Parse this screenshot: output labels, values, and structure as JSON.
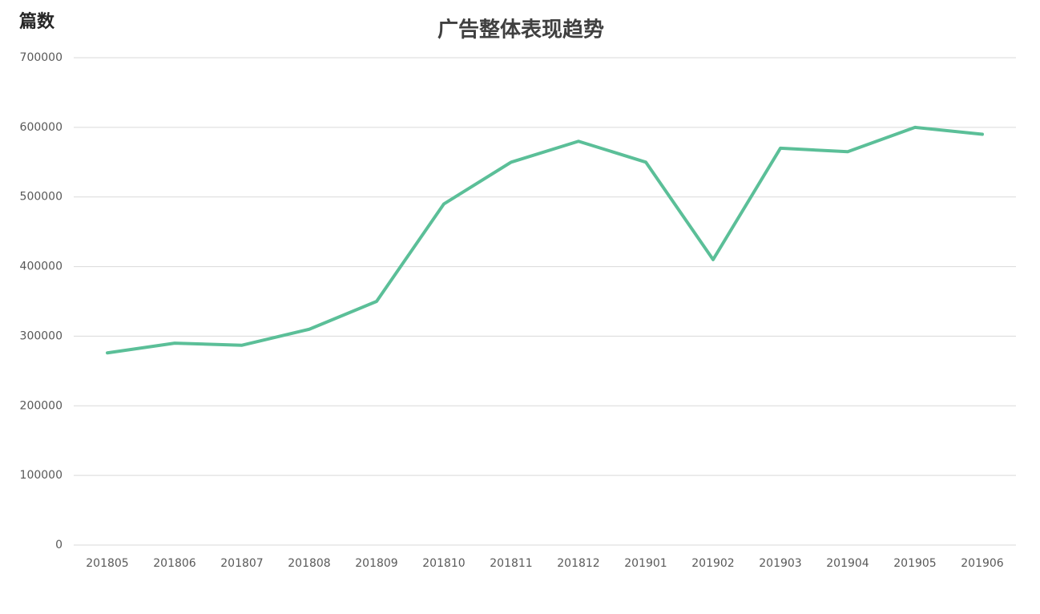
{
  "chart_data": {
    "type": "line",
    "title": "广告整体表现趋势",
    "y_label": "篇数",
    "categories": [
      "201805",
      "201806",
      "201807",
      "201808",
      "201809",
      "201810",
      "201811",
      "201812",
      "201901",
      "201902",
      "201903",
      "201904",
      "201905",
      "201906"
    ],
    "series": [
      {
        "name": "篇数",
        "color": "#5bbf98",
        "values": [
          276000,
          290000,
          287000,
          310000,
          350000,
          490000,
          550000,
          580000,
          550000,
          410000,
          570000,
          565000,
          600000,
          590000
        ]
      }
    ],
    "ylim": [
      0,
      700000
    ],
    "yticks": [
      0,
      100000,
      200000,
      300000,
      400000,
      500000,
      600000,
      700000
    ],
    "grid": true
  }
}
